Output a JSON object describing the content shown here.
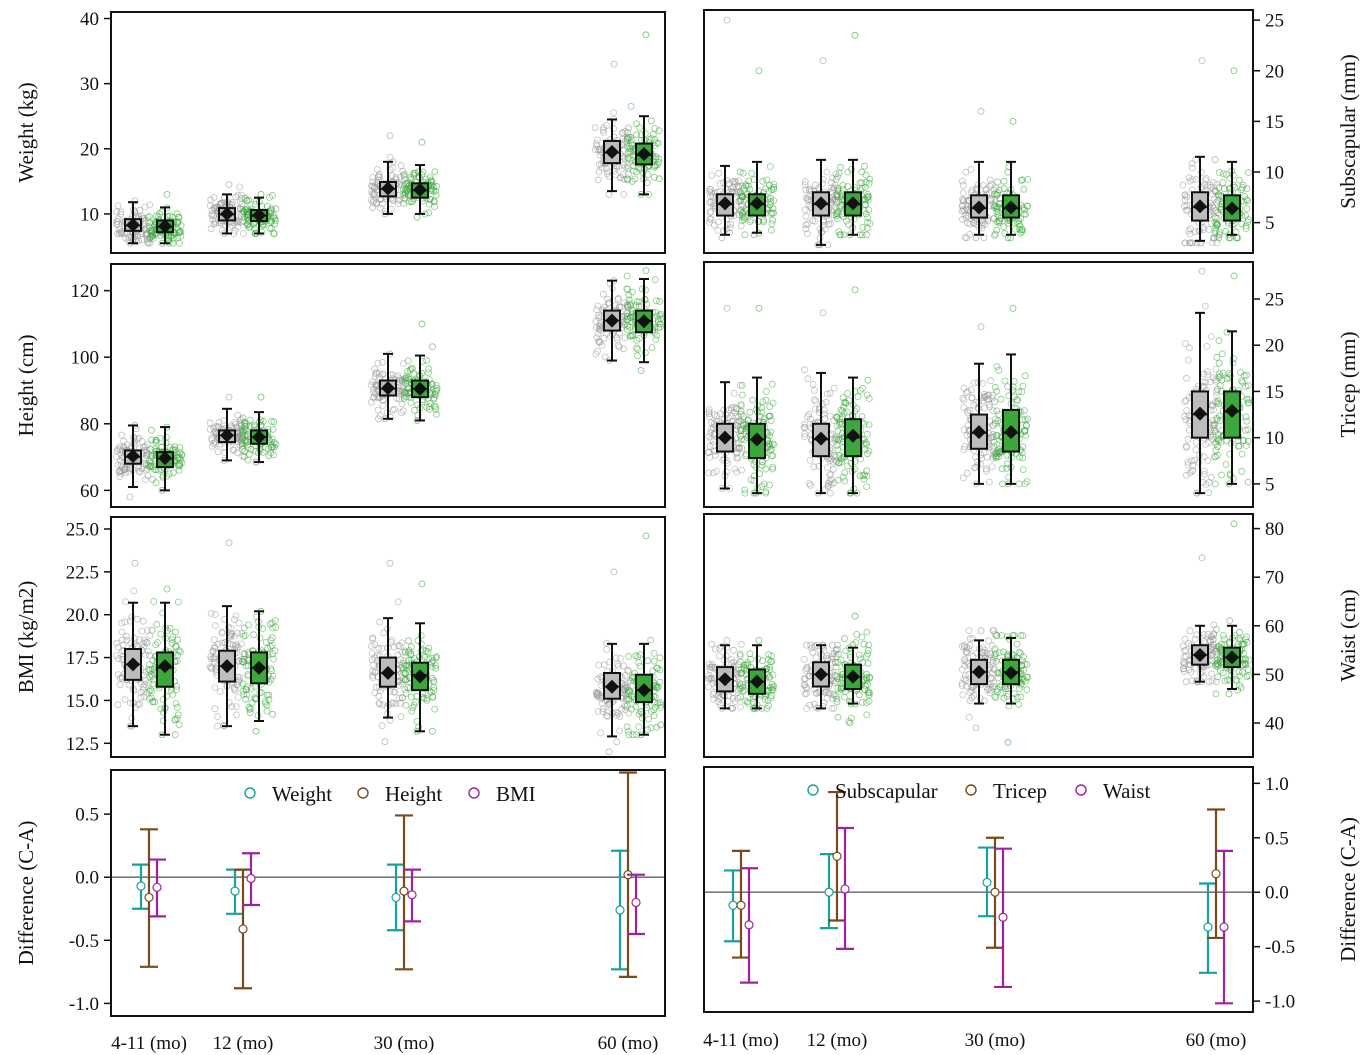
{
  "colors": {
    "control": "#9a9a9a",
    "intervention": "#3aa83a",
    "box_control_fill": "#bdbdbd",
    "box_intervention_fill": "#3aa83a",
    "weight_or_subscapular": "#16a0a0",
    "height_or_tricep": "#7a4a18",
    "bmi_or_waist": "#a020a0",
    "zero_line": "#7a7a7a"
  },
  "chart_data": [
    {
      "type": "box",
      "id": "weight",
      "ylabel": "Weight (kg)",
      "axis_side": "left",
      "ylim": [
        4,
        41
      ],
      "yticks": [
        "10",
        "20",
        "30",
        "40"
      ],
      "categories": [
        "4-11 (mo)",
        "12 (mo)",
        "30 (mo)",
        "60 (mo)"
      ],
      "groups": [
        {
          "cat": 0,
          "arm": "control",
          "whislo": 5.5,
          "q1": 7.4,
          "med": 8.2,
          "q3": 9.2,
          "whishi": 11.8,
          "mean": 8.3,
          "n": 90,
          "obs_min": 5.5,
          "obs_max": 12.0
        },
        {
          "cat": 0,
          "arm": "intervention",
          "whislo": 5.5,
          "q1": 7.2,
          "med": 8.0,
          "q3": 9.0,
          "whishi": 11.0,
          "mean": 8.1,
          "n": 90,
          "obs_min": 5.5,
          "obs_max": 13.0
        },
        {
          "cat": 1,
          "arm": "control",
          "whislo": 7.0,
          "q1": 9.0,
          "med": 9.9,
          "q3": 10.9,
          "whishi": 13.0,
          "mean": 10.0,
          "n": 90,
          "obs_min": 7.0,
          "obs_max": 14.5
        },
        {
          "cat": 1,
          "arm": "intervention",
          "whislo": 7.0,
          "q1": 8.9,
          "med": 9.7,
          "q3": 10.6,
          "whishi": 12.5,
          "mean": 9.8,
          "n": 90,
          "obs_min": 7.0,
          "obs_max": 13.0
        },
        {
          "cat": 2,
          "arm": "control",
          "whislo": 10.0,
          "q1": 12.7,
          "med": 13.8,
          "q3": 14.9,
          "whishi": 18.0,
          "mean": 13.9,
          "n": 90,
          "obs_min": 10.0,
          "obs_max": 22.0
        },
        {
          "cat": 2,
          "arm": "intervention",
          "whislo": 10.0,
          "q1": 12.5,
          "med": 13.6,
          "q3": 14.7,
          "whishi": 17.5,
          "mean": 13.7,
          "n": 90,
          "obs_min": 9.5,
          "obs_max": 21.0
        },
        {
          "cat": 3,
          "arm": "control",
          "whislo": 13.5,
          "q1": 17.8,
          "med": 19.4,
          "q3": 21.2,
          "whishi": 24.5,
          "mean": 19.5,
          "n": 90,
          "obs_min": 13.0,
          "obs_max": 33.0
        },
        {
          "cat": 3,
          "arm": "intervention",
          "whislo": 13.0,
          "q1": 17.6,
          "med": 19.0,
          "q3": 20.8,
          "whishi": 25.0,
          "mean": 19.2,
          "n": 90,
          "obs_min": 13.0,
          "obs_max": 37.5
        }
      ]
    },
    {
      "type": "box",
      "id": "subscapular",
      "ylabel": "Subscapular (mm)",
      "axis_side": "right",
      "ylim": [
        2,
        26
      ],
      "yticks": [
        "5",
        "10",
        "15",
        "20",
        "25"
      ],
      "categories": [
        "4-11 (mo)",
        "12 (mo)",
        "30 (mo)",
        "60 (mo)"
      ],
      "groups": [
        {
          "cat": 0,
          "arm": "control",
          "whislo": 3.8,
          "q1": 5.7,
          "med": 6.8,
          "q3": 7.8,
          "whishi": 10.6,
          "mean": 6.9,
          "n": 90,
          "obs_min": 3.5,
          "obs_max": 25.0
        },
        {
          "cat": 0,
          "arm": "intervention",
          "whislo": 4.0,
          "q1": 5.7,
          "med": 6.8,
          "q3": 7.8,
          "whishi": 11.0,
          "mean": 6.9,
          "n": 90,
          "obs_min": 3.8,
          "obs_max": 20.0
        },
        {
          "cat": 1,
          "arm": "control",
          "whislo": 2.8,
          "q1": 5.7,
          "med": 6.8,
          "q3": 8.0,
          "whishi": 11.2,
          "mean": 6.9,
          "n": 90,
          "obs_min": 2.8,
          "obs_max": 21.0
        },
        {
          "cat": 1,
          "arm": "intervention",
          "whislo": 3.8,
          "q1": 5.7,
          "med": 6.8,
          "q3": 8.0,
          "whishi": 11.2,
          "mean": 6.9,
          "n": 90,
          "obs_min": 3.8,
          "obs_max": 23.5
        },
        {
          "cat": 2,
          "arm": "control",
          "whislo": 3.8,
          "q1": 5.5,
          "med": 6.4,
          "q3": 7.7,
          "whishi": 11.0,
          "mean": 6.5,
          "n": 90,
          "obs_min": 3.5,
          "obs_max": 16.0
        },
        {
          "cat": 2,
          "arm": "intervention",
          "whislo": 3.8,
          "q1": 5.5,
          "med": 6.4,
          "q3": 7.7,
          "whishi": 11.0,
          "mean": 6.5,
          "n": 90,
          "obs_min": 3.5,
          "obs_max": 15.0
        },
        {
          "cat": 3,
          "arm": "control",
          "whislo": 3.2,
          "q1": 5.2,
          "med": 6.5,
          "q3": 8.0,
          "whishi": 11.5,
          "mean": 6.6,
          "n": 90,
          "obs_min": 3.0,
          "obs_max": 21.0
        },
        {
          "cat": 3,
          "arm": "intervention",
          "whislo": 3.8,
          "q1": 5.2,
          "med": 6.4,
          "q3": 7.7,
          "whishi": 11.0,
          "mean": 6.4,
          "n": 90,
          "obs_min": 3.5,
          "obs_max": 20.0
        }
      ]
    },
    {
      "type": "box",
      "id": "height",
      "ylabel": "Height (cm)",
      "axis_side": "left",
      "ylim": [
        55,
        128
      ],
      "yticks": [
        "60",
        "80",
        "100",
        "120"
      ],
      "categories": [
        "4-11 (mo)",
        "12 (mo)",
        "30 (mo)",
        "60 (mo)"
      ],
      "groups": [
        {
          "cat": 0,
          "arm": "control",
          "whislo": 61,
          "q1": 68,
          "med": 70,
          "q3": 72,
          "whishi": 79.5,
          "mean": 70.3,
          "n": 90,
          "obs_min": 58,
          "obs_max": 79.5
        },
        {
          "cat": 0,
          "arm": "intervention",
          "whislo": 60,
          "q1": 67,
          "med": 69.5,
          "q3": 71.5,
          "whishi": 79,
          "mean": 69.7,
          "n": 90,
          "obs_min": 60,
          "obs_max": 79
        },
        {
          "cat": 1,
          "arm": "control",
          "whislo": 69,
          "q1": 74.5,
          "med": 76.5,
          "q3": 78,
          "whishi": 84.5,
          "mean": 76.5,
          "n": 90,
          "obs_min": 69,
          "obs_max": 88
        },
        {
          "cat": 1,
          "arm": "intervention",
          "whislo": 68.5,
          "q1": 74,
          "med": 76,
          "q3": 78,
          "whishi": 83.5,
          "mean": 76.0,
          "n": 90,
          "obs_min": 68.5,
          "obs_max": 88
        },
        {
          "cat": 2,
          "arm": "control",
          "whislo": 81.5,
          "q1": 88.5,
          "med": 90.5,
          "q3": 93,
          "whishi": 101,
          "mean": 90.7,
          "n": 90,
          "obs_min": 81.5,
          "obs_max": 101
        },
        {
          "cat": 2,
          "arm": "intervention",
          "whislo": 81,
          "q1": 88,
          "med": 90.5,
          "q3": 93,
          "whishi": 100.5,
          "mean": 90.5,
          "n": 90,
          "obs_min": 81,
          "obs_max": 110
        },
        {
          "cat": 3,
          "arm": "control",
          "whislo": 99,
          "q1": 108,
          "med": 111,
          "q3": 114,
          "whishi": 123,
          "mean": 111.0,
          "n": 90,
          "obs_min": 99,
          "obs_max": 123
        },
        {
          "cat": 3,
          "arm": "intervention",
          "whislo": 98.5,
          "q1": 107.5,
          "med": 111,
          "q3": 114,
          "whishi": 123.5,
          "mean": 110.8,
          "n": 90,
          "obs_min": 96,
          "obs_max": 126
        }
      ]
    },
    {
      "type": "box",
      "id": "tricep",
      "ylabel": "Tricep (mm)",
      "axis_side": "right",
      "ylim": [
        2.5,
        29
      ],
      "yticks": [
        "5",
        "10",
        "15",
        "20",
        "25"
      ],
      "categories": [
        "4-11 (mo)",
        "12 (mo)",
        "30 (mo)",
        "60 (mo)"
      ],
      "groups": [
        {
          "cat": 0,
          "arm": "control",
          "whislo": 4.5,
          "q1": 8.5,
          "med": 10,
          "q3": 11.5,
          "whishi": 16,
          "mean": 10.0,
          "n": 110,
          "obs_min": 4.5,
          "obs_max": 24
        },
        {
          "cat": 0,
          "arm": "intervention",
          "whislo": 4,
          "q1": 7.8,
          "med": 9.8,
          "q3": 11.5,
          "whishi": 16.5,
          "mean": 9.8,
          "n": 110,
          "obs_min": 4,
          "obs_max": 24
        },
        {
          "cat": 1,
          "arm": "control",
          "whislo": 4,
          "q1": 8,
          "med": 9.8,
          "q3": 11.5,
          "whishi": 17,
          "mean": 9.9,
          "n": 110,
          "obs_min": 4,
          "obs_max": 23.5
        },
        {
          "cat": 1,
          "arm": "intervention",
          "whislo": 4,
          "q1": 8,
          "med": 10,
          "q3": 12,
          "whishi": 16.5,
          "mean": 10.2,
          "n": 110,
          "obs_min": 4,
          "obs_max": 26
        },
        {
          "cat": 2,
          "arm": "control",
          "whislo": 5,
          "q1": 8.8,
          "med": 10.5,
          "q3": 12.5,
          "whishi": 18,
          "mean": 10.6,
          "n": 110,
          "obs_min": 5,
          "obs_max": 22
        },
        {
          "cat": 2,
          "arm": "intervention",
          "whislo": 5,
          "q1": 8.5,
          "med": 10.5,
          "q3": 13,
          "whishi": 19,
          "mean": 10.6,
          "n": 110,
          "obs_min": 5,
          "obs_max": 24
        },
        {
          "cat": 3,
          "arm": "control",
          "whislo": 4,
          "q1": 10,
          "med": 12.5,
          "q3": 15,
          "whishi": 23.5,
          "mean": 12.6,
          "n": 110,
          "obs_min": 4,
          "obs_max": 28
        },
        {
          "cat": 3,
          "arm": "intervention",
          "whislo": 5,
          "q1": 10,
          "med": 12.8,
          "q3": 15,
          "whishi": 21.5,
          "mean": 12.9,
          "n": 110,
          "obs_min": 5,
          "obs_max": 27.5
        }
      ]
    },
    {
      "type": "box",
      "id": "bmi",
      "ylabel": "BMI (kg/m2)",
      "axis_side": "left",
      "ylim": [
        11.7,
        25.7
      ],
      "yticks": [
        "12.5",
        "15.0",
        "17.5",
        "20.0",
        "22.5",
        "25.0"
      ],
      "categories": [
        "4-11 (mo)",
        "12 (mo)",
        "30 (mo)",
        "60 (mo)"
      ],
      "groups": [
        {
          "cat": 0,
          "arm": "control",
          "whislo": 13.5,
          "q1": 16.2,
          "med": 17.1,
          "q3": 18.0,
          "whishi": 20.7,
          "mean": 17.1,
          "n": 100,
          "obs_min": 13.5,
          "obs_max": 23
        },
        {
          "cat": 0,
          "arm": "intervention",
          "whislo": 13,
          "q1": 15.8,
          "med": 16.9,
          "q3": 17.8,
          "whishi": 20.7,
          "mean": 17.0,
          "n": 100,
          "obs_min": 13,
          "obs_max": 21.5
        },
        {
          "cat": 1,
          "arm": "control",
          "whislo": 13.5,
          "q1": 16.1,
          "med": 17.0,
          "q3": 17.9,
          "whishi": 20.5,
          "mean": 17.0,
          "n": 100,
          "obs_min": 13.5,
          "obs_max": 24.2
        },
        {
          "cat": 1,
          "arm": "intervention",
          "whislo": 13.8,
          "q1": 16.0,
          "med": 16.9,
          "q3": 17.8,
          "whishi": 20.2,
          "mean": 16.9,
          "n": 100,
          "obs_min": 13.2,
          "obs_max": 20.2
        },
        {
          "cat": 2,
          "arm": "control",
          "whislo": 14,
          "q1": 15.8,
          "med": 16.6,
          "q3": 17.5,
          "whishi": 19.8,
          "mean": 16.6,
          "n": 100,
          "obs_min": 12.6,
          "obs_max": 23
        },
        {
          "cat": 2,
          "arm": "intervention",
          "whislo": 13.2,
          "q1": 15.6,
          "med": 16.5,
          "q3": 17.2,
          "whishi": 19.5,
          "mean": 16.4,
          "n": 100,
          "obs_min": 13.2,
          "obs_max": 21.8
        },
        {
          "cat": 3,
          "arm": "control",
          "whislo": 12.9,
          "q1": 15.1,
          "med": 15.8,
          "q3": 16.6,
          "whishi": 18.3,
          "mean": 15.8,
          "n": 100,
          "obs_min": 12,
          "obs_max": 22.5
        },
        {
          "cat": 3,
          "arm": "intervention",
          "whislo": 13,
          "q1": 14.9,
          "med": 15.6,
          "q3": 16.5,
          "whishi": 18.3,
          "mean": 15.6,
          "n": 100,
          "obs_min": 13,
          "obs_max": 24.6
        }
      ]
    },
    {
      "type": "box",
      "id": "waist",
      "ylabel": "Waist (cm)",
      "axis_side": "right",
      "ylim": [
        33,
        83
      ],
      "yticks": [
        "40",
        "50",
        "60",
        "70",
        "80"
      ],
      "categories": [
        "4-11 (mo)",
        "12 (mo)",
        "30 (mo)",
        "60 (mo)"
      ],
      "groups": [
        {
          "cat": 0,
          "arm": "control",
          "whislo": 43,
          "q1": 46.5,
          "med": 49,
          "q3": 51.5,
          "whishi": 56,
          "mean": 49.0,
          "n": 100,
          "obs_min": 43,
          "obs_max": 57
        },
        {
          "cat": 0,
          "arm": "intervention",
          "whislo": 43,
          "q1": 46,
          "med": 48.5,
          "q3": 51,
          "whishi": 56,
          "mean": 48.5,
          "n": 100,
          "obs_min": 43,
          "obs_max": 57
        },
        {
          "cat": 1,
          "arm": "control",
          "whislo": 43,
          "q1": 47.5,
          "med": 50,
          "q3": 52.5,
          "whishi": 56,
          "mean": 50.0,
          "n": 100,
          "obs_min": 43,
          "obs_max": 56
        },
        {
          "cat": 1,
          "arm": "intervention",
          "whislo": 44,
          "q1": 47,
          "med": 49.5,
          "q3": 52,
          "whishi": 55.5,
          "mean": 49.5,
          "n": 100,
          "obs_min": 40,
          "obs_max": 62
        },
        {
          "cat": 2,
          "arm": "control",
          "whislo": 44,
          "q1": 48,
          "med": 50.5,
          "q3": 53,
          "whishi": 57,
          "mean": 50.5,
          "n": 100,
          "obs_min": 39,
          "obs_max": 59
        },
        {
          "cat": 2,
          "arm": "intervention",
          "whislo": 44,
          "q1": 48,
          "med": 50.5,
          "q3": 53,
          "whishi": 57.5,
          "mean": 50.3,
          "n": 100,
          "obs_min": 36,
          "obs_max": 58
        },
        {
          "cat": 3,
          "arm": "control",
          "whislo": 48.5,
          "q1": 52,
          "med": 54,
          "q3": 56,
          "whishi": 60,
          "mean": 54.0,
          "n": 100,
          "obs_min": 48.5,
          "obs_max": 74
        },
        {
          "cat": 3,
          "arm": "intervention",
          "whislo": 47,
          "q1": 51.5,
          "med": 53.5,
          "q3": 55.5,
          "whishi": 60,
          "mean": 53.5,
          "n": 100,
          "obs_min": 46,
          "obs_max": 81
        }
      ]
    },
    {
      "type": "errorbar",
      "id": "diff_left",
      "ylabel": "Difference (C-A)",
      "axis_side": "left",
      "ylim": [
        -1.1,
        0.85
      ],
      "yticks": [
        "-1.0",
        "-0.5",
        "0.0",
        "0.5"
      ],
      "categories": [
        "4-11 (mo)",
        "12 (mo)",
        "30 (mo)",
        "60 (mo)"
      ],
      "legend": [
        "Weight",
        "Height",
        "BMI"
      ],
      "series": [
        {
          "name": "Weight",
          "mean": [
            -0.07,
            -0.11,
            -0.16,
            -0.26
          ],
          "lo": [
            -0.25,
            -0.29,
            -0.42,
            -0.73
          ],
          "hi": [
            0.1,
            0.06,
            0.1,
            0.21
          ]
        },
        {
          "name": "Height",
          "mean": [
            -0.16,
            -0.41,
            -0.11,
            0.02
          ],
          "lo": [
            -0.71,
            -0.88,
            -0.73,
            -0.79
          ],
          "hi": [
            0.38,
            0.06,
            0.49,
            0.83
          ]
        },
        {
          "name": "BMI",
          "mean": [
            -0.08,
            -0.01,
            -0.14,
            -0.2
          ],
          "lo": [
            -0.31,
            -0.22,
            -0.35,
            -0.45
          ],
          "hi": [
            0.14,
            0.19,
            0.06,
            0.02
          ]
        }
      ]
    },
    {
      "type": "errorbar",
      "id": "diff_right",
      "ylabel": "Difference (C-A)",
      "axis_side": "right",
      "ylim": [
        -1.1,
        1.15
      ],
      "yticks": [
        "-1.0",
        "-0.5",
        "0.0",
        "0.5",
        "1.0"
      ],
      "categories": [
        "4-11 (mo)",
        "12 (mo)",
        "30 (mo)",
        "60 (mo)"
      ],
      "legend": [
        "Subscapular",
        "Tricep",
        "Waist"
      ],
      "series": [
        {
          "name": "Subscapular",
          "mean": [
            -0.12,
            0.0,
            0.09,
            -0.32
          ],
          "lo": [
            -0.45,
            -0.33,
            -0.22,
            -0.74
          ],
          "hi": [
            0.2,
            0.35,
            0.41,
            0.08
          ]
        },
        {
          "name": "Tricep",
          "mean": [
            -0.12,
            0.33,
            0.0,
            0.17
          ],
          "lo": [
            -0.6,
            -0.26,
            -0.51,
            -0.42
          ],
          "hi": [
            0.38,
            0.92,
            0.5,
            0.76
          ]
        },
        {
          "name": "Waist",
          "mean": [
            -0.3,
            0.03,
            -0.23,
            -0.32
          ],
          "lo": [
            -0.83,
            -0.52,
            -0.87,
            -1.02
          ],
          "hi": [
            0.22,
            0.59,
            0.4,
            0.38
          ]
        }
      ]
    }
  ]
}
